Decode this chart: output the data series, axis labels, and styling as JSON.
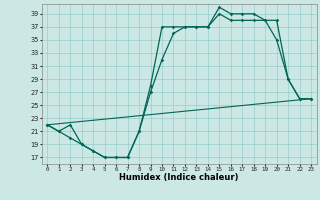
{
  "xlabel": "Humidex (Indice chaleur)",
  "ylabel": "",
  "background_color": "#cce8e4",
  "grid_color": "#99cccc",
  "line_color": "#006655",
  "xlim": [
    -0.5,
    23.5
  ],
  "ylim": [
    16,
    40.5
  ],
  "yticks": [
    17,
    19,
    21,
    23,
    25,
    27,
    29,
    31,
    33,
    35,
    37,
    39
  ],
  "xticks": [
    0,
    1,
    2,
    3,
    4,
    5,
    6,
    7,
    8,
    9,
    10,
    11,
    12,
    13,
    14,
    15,
    16,
    17,
    18,
    19,
    20,
    21,
    22,
    23
  ],
  "line1_x": [
    0,
    1,
    2,
    3,
    4,
    5,
    6,
    7,
    8,
    9,
    10,
    11,
    12,
    13,
    14,
    15,
    16,
    17,
    18,
    19,
    20,
    21,
    22,
    23
  ],
  "line1_y": [
    22,
    21,
    22,
    19,
    18,
    17,
    17,
    17,
    21,
    28,
    37,
    37,
    37,
    37,
    37,
    40,
    39,
    39,
    39,
    38,
    35,
    29,
    26,
    26
  ],
  "line2_x": [
    0,
    1,
    2,
    3,
    4,
    5,
    6,
    7,
    8,
    9,
    10,
    11,
    12,
    13,
    14,
    15,
    16,
    17,
    18,
    19,
    20,
    21,
    22,
    23
  ],
  "line2_y": [
    22,
    21,
    20,
    19,
    18,
    17,
    17,
    17,
    21,
    27,
    32,
    36,
    37,
    37,
    37,
    39,
    38,
    38,
    38,
    38,
    38,
    29,
    26,
    26
  ],
  "line3_x": [
    0,
    23
  ],
  "line3_y": [
    22,
    26
  ]
}
